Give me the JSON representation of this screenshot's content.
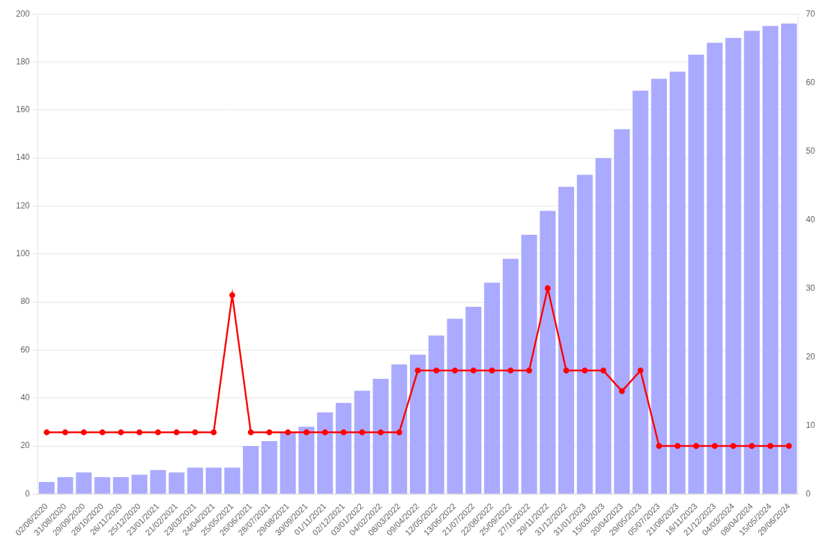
{
  "chart_data": {
    "type": "bar",
    "categories": [
      "02/08/2020",
      "31/08/2020",
      "29/09/2020",
      "28/10/2020",
      "26/11/2020",
      "25/12/2020",
      "23/01/2021",
      "21/02/2021",
      "23/03/2021",
      "24/04/2021",
      "25/05/2021",
      "26/06/2021",
      "28/07/2021",
      "29/08/2021",
      "30/09/2021",
      "01/11/2021",
      "02/12/2021",
      "03/01/2022",
      "04/02/2022",
      "08/03/2022",
      "09/04/2022",
      "12/05/2022",
      "13/06/2022",
      "21/07/2022",
      "22/08/2022",
      "25/09/2022",
      "27/10/2022",
      "29/11/2022",
      "31/12/2022",
      "31/01/2023",
      "15/03/2023",
      "20/04/2023",
      "29/05/2023",
      "05/07/2023",
      "21/08/2023",
      "16/11/2023",
      "21/12/2023",
      "04/03/2024",
      "08/04/2024",
      "15/05/2024",
      "29/06/2024"
    ],
    "series": [
      {
        "type": "bar",
        "color": "#aaaaff",
        "values": [
          5,
          7,
          9,
          7,
          7,
          8,
          10,
          9,
          11,
          11,
          11,
          20,
          22,
          26,
          28,
          34,
          38,
          43,
          48,
          54,
          58,
          66,
          73,
          78,
          88,
          98,
          108,
          118,
          128,
          133,
          140,
          152,
          168,
          173,
          176,
          183,
          188,
          190,
          193,
          195,
          196
        ]
      },
      {
        "type": "line",
        "color": "#ff0000",
        "marker": "circle",
        "line_style": "solid",
        "axis": "y2",
        "values": [
          9,
          9,
          9,
          9,
          9,
          9,
          9,
          9,
          9,
          9,
          29,
          9,
          9,
          9,
          9,
          9,
          9,
          9,
          9,
          9,
          18,
          18,
          18,
          18,
          18,
          18,
          18,
          30,
          18,
          18,
          18,
          15,
          18,
          7,
          7,
          7,
          7,
          7,
          7,
          7,
          7
        ]
      }
    ],
    "ylim": [
      0,
      200
    ],
    "yticks": [
      0,
      20,
      40,
      60,
      80,
      100,
      120,
      140,
      160,
      180,
      200
    ],
    "y2lim": [
      0,
      70
    ],
    "y2ticks": [
      0,
      10,
      20,
      30,
      40,
      50,
      60,
      70
    ],
    "grid": true
  }
}
